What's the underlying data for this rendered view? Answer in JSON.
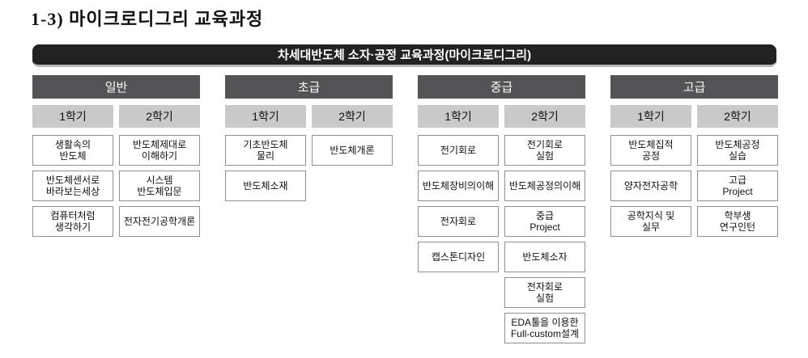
{
  "page": {
    "title": "1-3) 마이크로디그리 교육과정",
    "banner": "차세대반도체 소자·공정 교육과정(마이크로디그리)"
  },
  "colors": {
    "banner_bg": "#222222",
    "banner_underline": "#b9b9b9",
    "level_header_bg": "#545457",
    "level_header_text": "#ffffff",
    "semester_header_bg": "#c9c9c9",
    "course_border": "#8f8f8f",
    "text": "#111111"
  },
  "columns": [
    {
      "id": "general",
      "level": "일반",
      "semesters": [
        {
          "label": "1학기",
          "courses": [
            [
              "생활속의",
              "반도체"
            ],
            [
              "반도체센서로",
              "바라보는세상"
            ],
            [
              "컴퓨터처럼",
              "생각하기"
            ]
          ]
        },
        {
          "label": "2학기",
          "courses": [
            [
              "반도체제대로",
              "이해하기"
            ],
            [
              "시스템",
              "반도체입문"
            ],
            [
              "전자전기공학개론"
            ]
          ]
        }
      ]
    },
    {
      "id": "beginner",
      "level": "초급",
      "semesters": [
        {
          "label": "1학기",
          "courses": [
            [
              "기초반도체",
              "물리"
            ],
            [
              "반도체소재"
            ]
          ]
        },
        {
          "label": "2학기",
          "courses": [
            [
              "반도체개론"
            ]
          ]
        }
      ]
    },
    {
      "id": "intermediate",
      "level": "중급",
      "semesters": [
        {
          "label": "1학기",
          "courses": [
            [
              "전기회로"
            ],
            [
              "반도체장비의이해"
            ],
            [
              "전자회로"
            ],
            [
              "캡스톤디자인"
            ]
          ]
        },
        {
          "label": "2학기",
          "courses": [
            [
              "전기회로",
              "실험"
            ],
            [
              "반도체공정의이해"
            ],
            [
              "중급",
              "Project"
            ],
            [
              "반도체소자"
            ],
            [
              "전자회로",
              "실험"
            ],
            [
              "EDA툴을 이용한",
              "Full-custom설계"
            ]
          ]
        }
      ]
    },
    {
      "id": "advanced",
      "level": "고급",
      "semesters": [
        {
          "label": "1학기",
          "courses": [
            [
              "반도체집적",
              "공정"
            ],
            [
              "양자전자공학"
            ],
            [
              "공학지식 및",
              "실무"
            ]
          ]
        },
        {
          "label": "2학기",
          "courses": [
            [
              "반도체공정",
              "실습"
            ],
            [
              "고급",
              "Project"
            ],
            [
              "학부생",
              "연구인턴"
            ]
          ]
        }
      ]
    }
  ]
}
